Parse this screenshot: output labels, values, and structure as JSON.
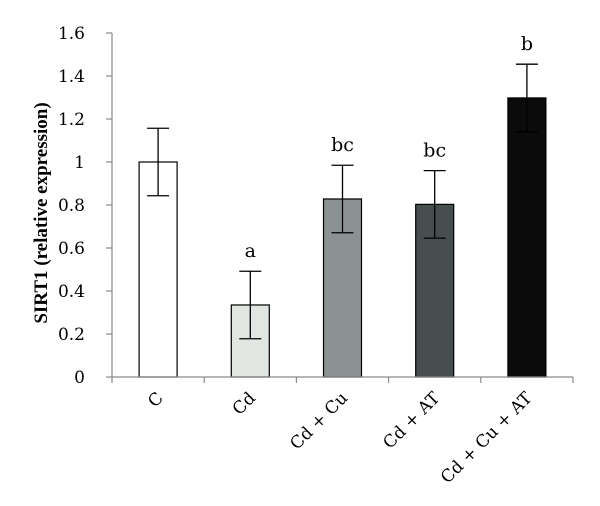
{
  "chart_data": {
    "type": "bar",
    "title": "",
    "xlabel": "",
    "ylabel": "SIRT1 (relative expression)",
    "ylim": [
      0,
      1.6
    ],
    "yticks": [
      "0",
      "0.2",
      "0.4",
      "0.6",
      "0.8",
      "1",
      "1.2",
      "1.4",
      "1.6"
    ],
    "ytick_values": [
      0,
      0.2,
      0.4,
      0.6,
      0.8,
      1.0,
      1.2,
      1.4,
      1.6
    ],
    "categories": [
      "C",
      "Cd",
      "Cd + Cu",
      "Cd + AT",
      "Cd + Cu + AT"
    ],
    "values": [
      1.0,
      0.335,
      0.828,
      0.803,
      1.298
    ],
    "errors": [
      0.157,
      0.157,
      0.157,
      0.157,
      0.157
    ],
    "significance_labels": [
      "",
      "a",
      "bc",
      "bc",
      "b"
    ],
    "bar_colors": [
      "#ffffff",
      "#e2e6e3",
      "#8b9292",
      "#474e50",
      "#0b0b0b"
    ],
    "grid": false,
    "legend": false
  }
}
